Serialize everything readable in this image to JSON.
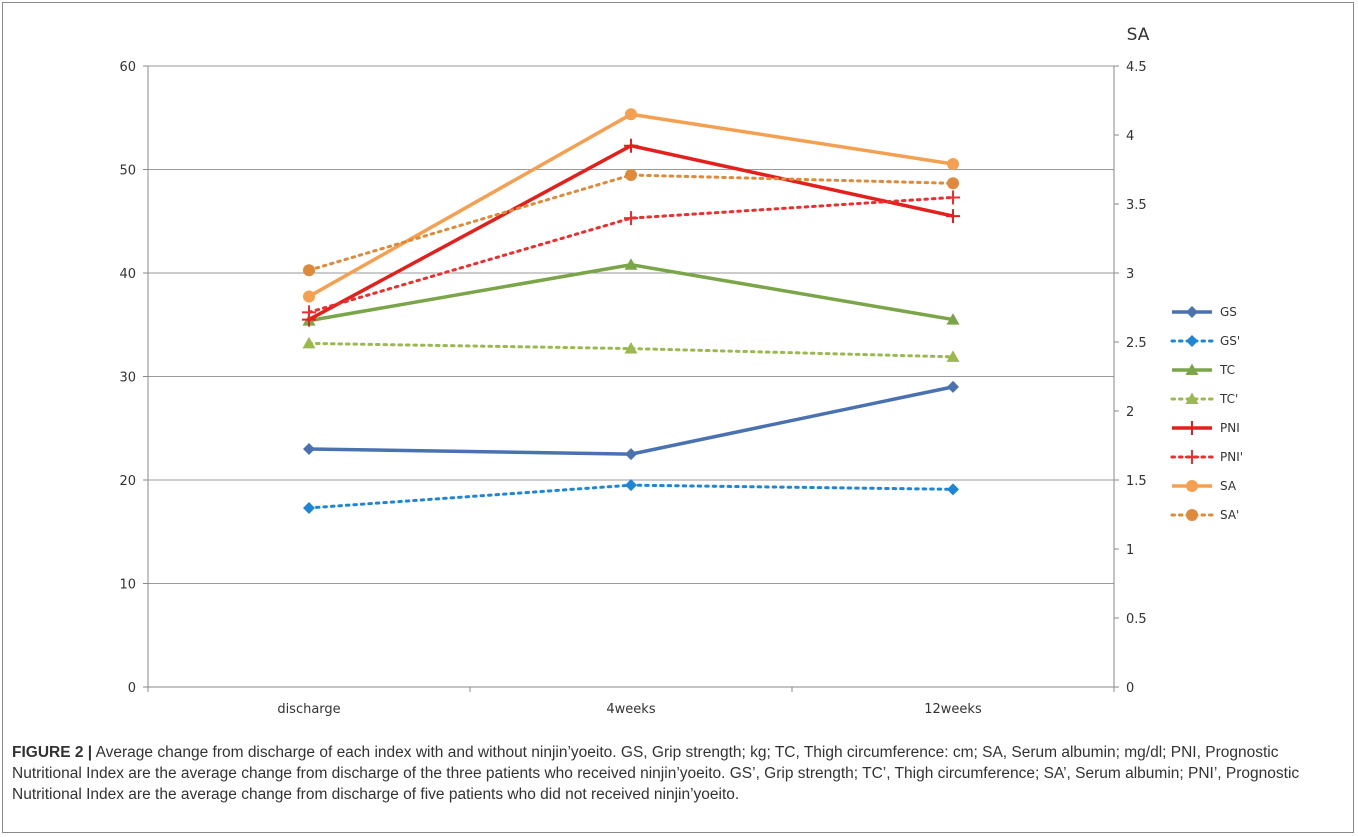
{
  "caption": {
    "label": "FIGURE 2 |",
    "text": "Average change from discharge of each index with and without ninjin’yoeito. GS, Grip strength; kg; TC, Thigh circumference: cm; SA, Serum albumin; mg/dl; PNI, Prognostic Nutritional Index are the average change from discharge of the three patients who received ninjin’yoeito. GS’, Grip strength; TC’, Thigh circumference; SA’, Serum albumin; PNI’, Prognostic Nutritional Index are the average change from discharge of five patients who did not received ninjin’yoeito."
  },
  "chart_data": {
    "type": "line",
    "title": "",
    "xlabel": "",
    "ylabel": "",
    "y2label": "SA",
    "categories": [
      "discharge",
      "4weeks",
      "12weeks"
    ],
    "ylim": [
      0,
      60
    ],
    "yticks": [
      0,
      10,
      20,
      30,
      40,
      50,
      60
    ],
    "y2lim": [
      0,
      4.5
    ],
    "y2ticks": [
      0,
      0.5,
      1,
      1.5,
      2,
      2.5,
      3,
      3.5,
      4,
      4.5
    ],
    "grid": true,
    "legend": "right",
    "series": [
      {
        "name": "GS",
        "axis": "left",
        "values": [
          23.0,
          22.5,
          29.0
        ],
        "color": "#4a72b0",
        "dash": false,
        "marker": "diamond"
      },
      {
        "name": "GS'",
        "axis": "left",
        "values": [
          17.3,
          19.5,
          19.1
        ],
        "color": "#1f86d6",
        "dash": true,
        "marker": "diamond"
      },
      {
        "name": "TC",
        "axis": "left",
        "values": [
          35.4,
          40.8,
          35.5
        ],
        "color": "#7aa548",
        "dash": false,
        "marker": "triangle"
      },
      {
        "name": "TC'",
        "axis": "left",
        "values": [
          33.2,
          32.7,
          31.9
        ],
        "color": "#9ab94e",
        "dash": true,
        "marker": "triangle"
      },
      {
        "name": "PNI",
        "axis": "left",
        "values": [
          35.5,
          52.3,
          45.5
        ],
        "color": "#e3201b",
        "dash": false,
        "marker": "plus"
      },
      {
        "name": "PNI'",
        "axis": "left",
        "values": [
          36.2,
          45.3,
          47.3
        ],
        "color": "#ee2d2d",
        "dash": true,
        "marker": "plus"
      },
      {
        "name": "SA",
        "axis": "right",
        "values": [
          2.83,
          4.15,
          3.79
        ],
        "color": "#f5a050",
        "dash": false,
        "marker": "circle"
      },
      {
        "name": "SA'",
        "axis": "right",
        "values": [
          3.02,
          3.71,
          3.65
        ],
        "color": "#de8a3a",
        "dash": true,
        "marker": "circle"
      }
    ]
  }
}
